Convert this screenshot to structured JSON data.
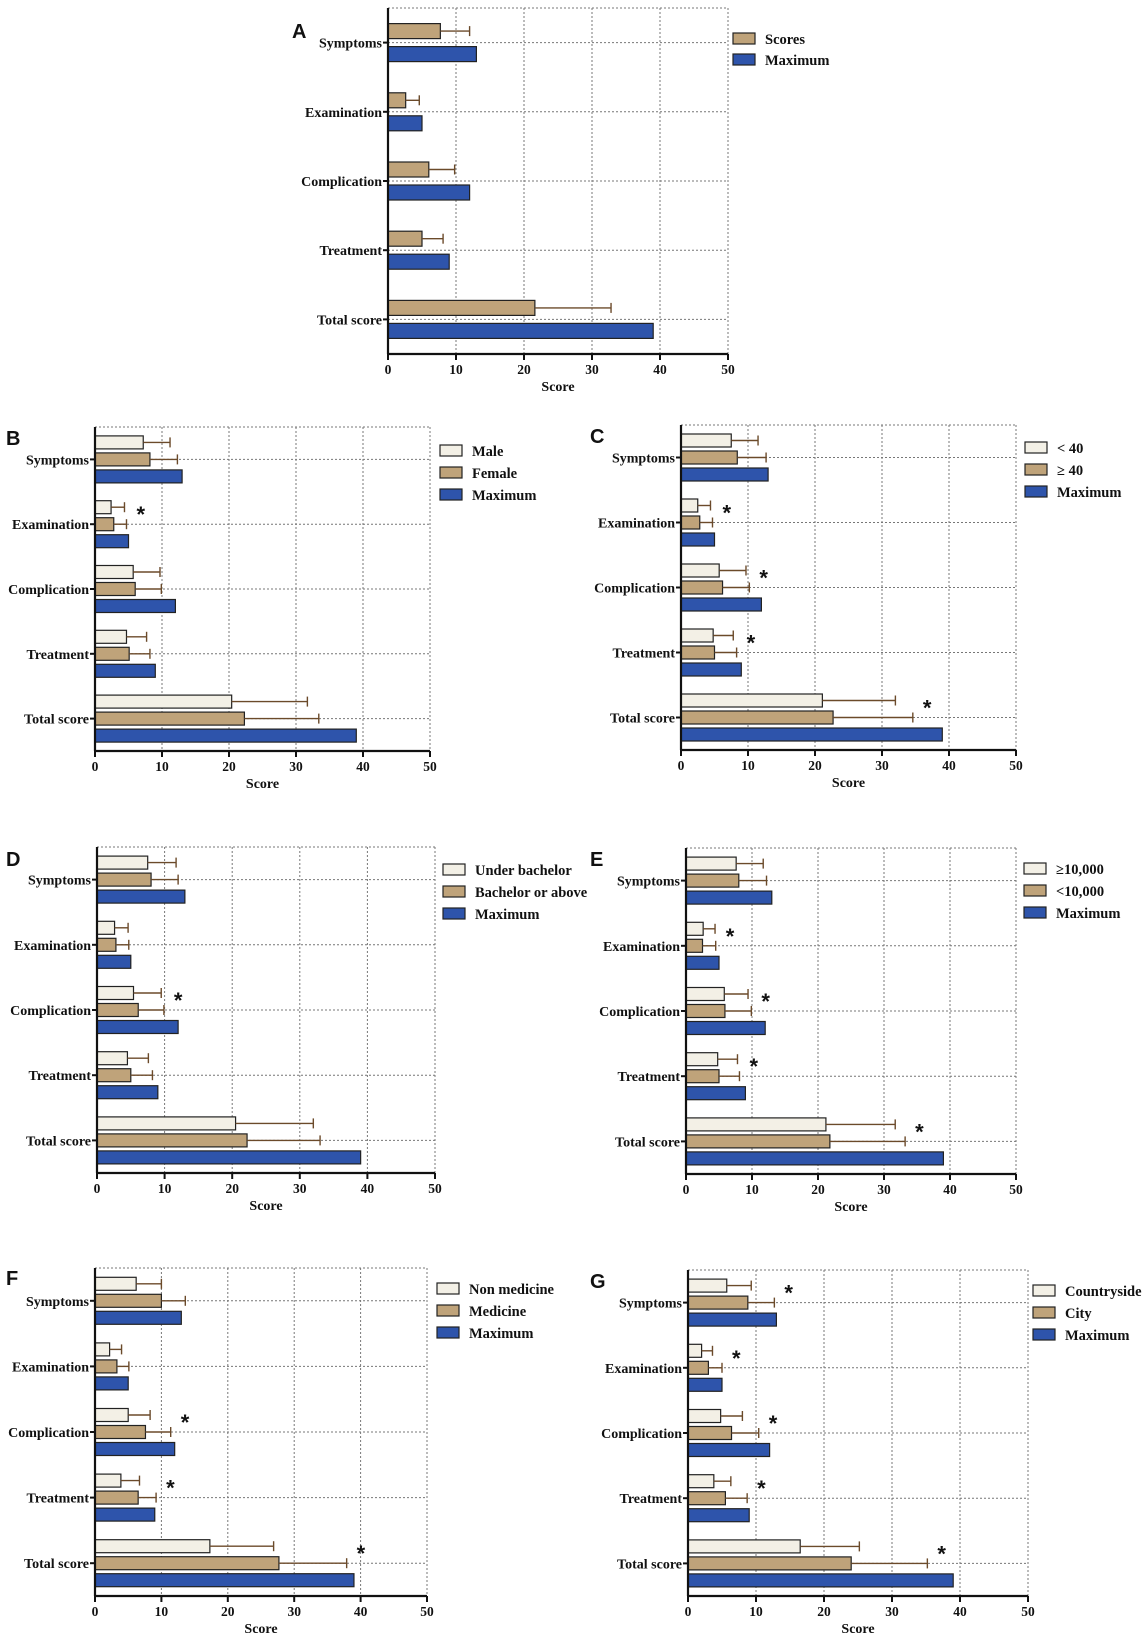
{
  "colors": {
    "light": "#f3f0e6",
    "tan": "#bfa37a",
    "blue": "#2e54ab",
    "error": "#6b4a2a",
    "grid": "#777777"
  },
  "chart_data": [
    {
      "panel": "A",
      "type": "bar",
      "orientation": "horizontal",
      "categories": [
        "Symptoms",
        "Examination",
        "Complication",
        "Treatment",
        "Total score"
      ],
      "xlabel": "Score",
      "xlim": [
        0,
        50
      ],
      "xticks": [
        0,
        10,
        20,
        30,
        40,
        50
      ],
      "legend": "right",
      "series": [
        {
          "name": "Scores",
          "color": "tan",
          "values": [
            7.7,
            2.6,
            6.0,
            5.0,
            21.6
          ],
          "errors": [
            4.3,
            2.0,
            3.8,
            3.1,
            11.2
          ]
        },
        {
          "name": "Maximum",
          "color": "blue",
          "values": [
            13,
            5,
            12,
            9,
            39
          ],
          "errors": [
            null,
            null,
            null,
            null,
            null
          ]
        }
      ],
      "significance": []
    },
    {
      "panel": "B",
      "type": "bar",
      "orientation": "horizontal",
      "categories": [
        "Symptoms",
        "Examination",
        "Complication",
        "Treatment",
        "Total score"
      ],
      "xlabel": "Score",
      "xlim": [
        0,
        50
      ],
      "xticks": [
        0,
        10,
        20,
        30,
        40,
        50
      ],
      "legend": "right",
      "series": [
        {
          "name": "Male",
          "color": "light",
          "values": [
            7.2,
            2.4,
            5.7,
            4.7,
            20.4
          ],
          "errors": [
            4.0,
            2.0,
            4.0,
            3.0,
            11.3
          ]
        },
        {
          "name": "Female",
          "color": "tan",
          "values": [
            8.2,
            2.8,
            6.0,
            5.1,
            22.3
          ],
          "errors": [
            4.1,
            1.9,
            3.9,
            3.1,
            11.1
          ]
        },
        {
          "name": "Maximum",
          "color": "blue",
          "values": [
            13,
            5,
            12,
            9,
            39
          ],
          "errors": [
            null,
            null,
            null,
            null,
            null
          ]
        }
      ],
      "significance": [
        "*",
        "Examination"
      ]
    },
    {
      "panel": "C",
      "type": "bar",
      "orientation": "horizontal",
      "categories": [
        "Symptoms",
        "Examination",
        "Complication",
        "Treatment",
        "Total score"
      ],
      "xlabel": "Score",
      "xlim": [
        0,
        50
      ],
      "xticks": [
        0,
        10,
        20,
        30,
        40,
        50
      ],
      "legend": "right",
      "series": [
        {
          "name": "< 40",
          "color": "light",
          "values": [
            7.5,
            2.5,
            5.7,
            4.8,
            21.1
          ],
          "errors": [
            4.0,
            1.9,
            4.0,
            3.0,
            10.9
          ]
        },
        {
          "name": "≥ 40",
          "color": "tan",
          "values": [
            8.4,
            2.8,
            6.2,
            5.0,
            22.7
          ],
          "errors": [
            4.3,
            1.9,
            4.0,
            3.3,
            11.9
          ]
        },
        {
          "name": "Maximum",
          "color": "blue",
          "values": [
            13,
            5,
            12,
            9,
            39
          ],
          "errors": [
            null,
            null,
            null,
            null,
            null
          ]
        }
      ],
      "significance": [
        "*",
        "Examination",
        "Complication",
        "Treatment",
        "Total score"
      ]
    },
    {
      "panel": "D",
      "type": "bar",
      "orientation": "horizontal",
      "categories": [
        "Symptoms",
        "Examination",
        "Complication",
        "Treatment",
        "Total score"
      ],
      "xlabel": "Score",
      "xlim": [
        0,
        50
      ],
      "xticks": [
        0,
        10,
        20,
        30,
        40,
        50
      ],
      "legend": "right",
      "series": [
        {
          "name": "Under bachelor",
          "color": "light",
          "values": [
            7.5,
            2.6,
            5.4,
            4.5,
            20.5
          ],
          "errors": [
            4.2,
            2.0,
            4.1,
            3.1,
            11.5
          ]
        },
        {
          "name": "Bachelor or above",
          "color": "tan",
          "values": [
            8.0,
            2.8,
            6.1,
            5.0,
            22.2
          ],
          "errors": [
            4.0,
            1.9,
            3.8,
            3.2,
            10.8
          ]
        },
        {
          "name": "Maximum",
          "color": "blue",
          "values": [
            13,
            5,
            12,
            9,
            39
          ],
          "errors": [
            null,
            null,
            null,
            null,
            null
          ]
        }
      ],
      "significance": [
        "*",
        "Complication"
      ]
    },
    {
      "panel": "E",
      "type": "bar",
      "orientation": "horizontal",
      "categories": [
        "Symptoms",
        "Examination",
        "Complication",
        "Treatment",
        "Total score"
      ],
      "xlabel": "Score",
      "xlim": [
        0,
        50
      ],
      "xticks": [
        0,
        10,
        20,
        30,
        40,
        50
      ],
      "legend": "right",
      "series": [
        {
          "name": "≥10,000",
          "color": "light",
          "values": [
            7.6,
            2.6,
            5.8,
            4.8,
            21.2
          ],
          "errors": [
            4.1,
            1.8,
            3.6,
            3.0,
            10.5
          ]
        },
        {
          "name": "<10,000",
          "color": "tan",
          "values": [
            8.0,
            2.5,
            5.9,
            5.0,
            21.8
          ],
          "errors": [
            4.2,
            2.0,
            4.0,
            3.1,
            11.4
          ]
        },
        {
          "name": "Maximum",
          "color": "blue",
          "values": [
            13,
            5,
            12,
            9,
            39
          ],
          "errors": [
            null,
            null,
            null,
            null,
            null
          ]
        }
      ],
      "significance": [
        "*",
        "Examination",
        "Complication",
        "Treatment",
        "Total score"
      ]
    },
    {
      "panel": "F",
      "type": "bar",
      "orientation": "horizontal",
      "categories": [
        "Symptoms",
        "Examination",
        "Complication",
        "Treatment",
        "Total score"
      ],
      "xlabel": "Score",
      "xlim": [
        0,
        50
      ],
      "xticks": [
        0,
        10,
        20,
        30,
        40,
        50
      ],
      "legend": "right",
      "series": [
        {
          "name": "Non medicine",
          "color": "light",
          "values": [
            6.2,
            2.2,
            5.0,
            3.9,
            17.3
          ],
          "errors": [
            3.8,
            1.8,
            3.3,
            2.8,
            9.6
          ]
        },
        {
          "name": "Medicine",
          "color": "tan",
          "values": [
            10.0,
            3.3,
            7.6,
            6.5,
            27.7
          ],
          "errors": [
            3.6,
            1.8,
            3.8,
            2.7,
            10.2
          ]
        },
        {
          "name": "Maximum",
          "color": "blue",
          "values": [
            13,
            5,
            12,
            9,
            39
          ],
          "errors": [
            null,
            null,
            null,
            null,
            null
          ]
        }
      ],
      "significance": [
        "*",
        "Complication",
        "Treatment",
        "Total score"
      ]
    },
    {
      "panel": "G",
      "type": "bar",
      "orientation": "horizontal",
      "categories": [
        "Symptoms",
        "Examination",
        "Complication",
        "Treatment",
        "Total score"
      ],
      "xlabel": "Score",
      "xlim": [
        0,
        50
      ],
      "xticks": [
        0,
        10,
        20,
        30,
        40,
        50
      ],
      "legend": "right",
      "series": [
        {
          "name": "Countryside",
          "color": "light",
          "values": [
            5.7,
            2.0,
            4.8,
            3.8,
            16.5
          ],
          "errors": [
            3.6,
            1.6,
            3.2,
            2.5,
            8.7
          ]
        },
        {
          "name": "City",
          "color": "tan",
          "values": [
            8.8,
            3.0,
            6.4,
            5.5,
            24.0
          ],
          "errors": [
            3.9,
            2.0,
            4.0,
            3.2,
            11.2
          ]
        },
        {
          "name": "Maximum",
          "color": "blue",
          "values": [
            13,
            5,
            12,
            9,
            39
          ],
          "errors": [
            null,
            null,
            null,
            null,
            null
          ]
        }
      ],
      "significance": [
        "*",
        "Symptoms",
        "Examination",
        "Complication",
        "Treatment",
        "Total score"
      ]
    }
  ]
}
